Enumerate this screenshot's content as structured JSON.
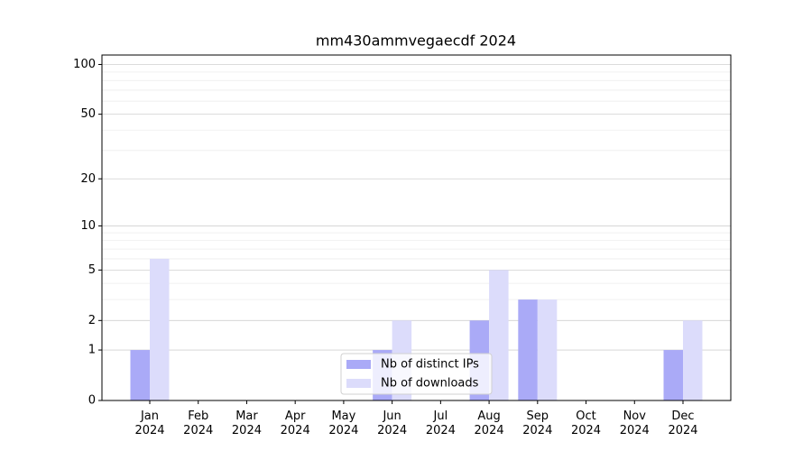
{
  "chart_data": {
    "type": "bar",
    "title": "mm430ammvegaecdf 2024",
    "categories": [
      "Jan 2024",
      "Feb 2024",
      "Mar 2024",
      "Apr 2024",
      "May 2024",
      "Jun 2024",
      "Jul 2024",
      "Aug 2024",
      "Sep 2024",
      "Oct 2024",
      "Nov 2024",
      "Dec 2024"
    ],
    "series": [
      {
        "name": "Nb of distinct IPs",
        "color": "#aaaaf7",
        "values": [
          1,
          0,
          0,
          0,
          0,
          1,
          0,
          2,
          3,
          0,
          0,
          1
        ]
      },
      {
        "name": "Nb of downloads",
        "color": "#dcdcfb",
        "values": [
          6,
          0,
          0,
          0,
          0,
          2,
          0,
          5,
          3,
          0,
          0,
          2
        ]
      }
    ],
    "yscale": "log1p",
    "ylim": [
      0,
      114
    ],
    "yticks": [
      0,
      1,
      2,
      5,
      10,
      20,
      50,
      100
    ],
    "minor_yticks": [
      3,
      4,
      6,
      7,
      8,
      9,
      30,
      40,
      60,
      70,
      80,
      90
    ],
    "grid": true,
    "legend": "lower center"
  }
}
